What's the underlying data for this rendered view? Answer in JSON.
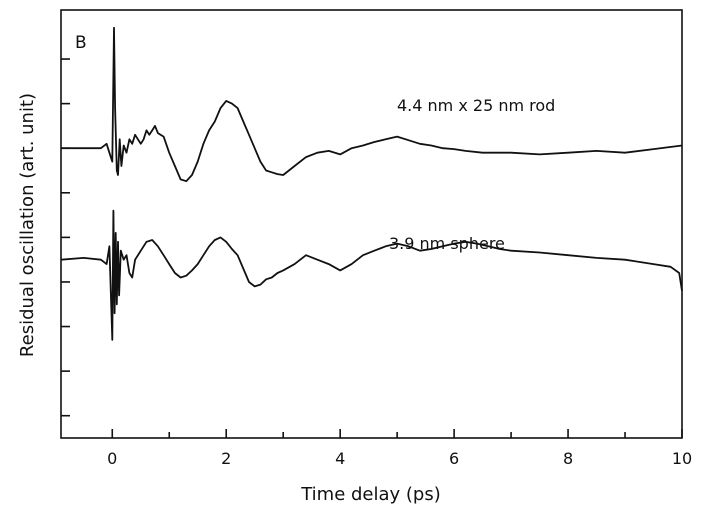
{
  "chart_data": {
    "type": "line",
    "panel_label": "B",
    "xlabel": "Time delay (ps)",
    "ylabel": "Residual oscillation (art. unit)",
    "xlim": [
      -0.9,
      10
    ],
    "x_ticks": [
      0,
      2,
      4,
      6,
      8,
      10
    ],
    "x_minor_ticks": [
      -1,
      1,
      3,
      5,
      7,
      9
    ],
    "ylim": [
      -2.0,
      2.8
    ],
    "y_ticks": [
      -1.75,
      -1.25,
      -0.75,
      -0.25,
      0.25,
      0.75,
      1.25,
      1.75,
      2.25
    ],
    "y_tick_labels_shown": false,
    "grid": false,
    "series": [
      {
        "name": "4.4 nm x  25 nm rod",
        "x": [
          -0.9,
          -0.5,
          -0.2,
          -0.1,
          -0.05,
          0.0,
          0.03,
          0.05,
          0.08,
          0.1,
          0.13,
          0.16,
          0.2,
          0.25,
          0.3,
          0.35,
          0.4,
          0.45,
          0.5,
          0.55,
          0.6,
          0.65,
          0.7,
          0.75,
          0.8,
          0.9,
          1.0,
          1.1,
          1.2,
          1.3,
          1.4,
          1.5,
          1.6,
          1.7,
          1.8,
          1.9,
          2.0,
          2.1,
          2.2,
          2.3,
          2.4,
          2.5,
          2.6,
          2.7,
          2.8,
          2.9,
          3.0,
          3.1,
          3.2,
          3.4,
          3.6,
          3.8,
          4.0,
          4.2,
          4.4,
          4.6,
          4.8,
          5.0,
          5.2,
          5.4,
          5.6,
          5.8,
          6.0,
          6.2,
          6.5,
          7.0,
          7.5,
          8.0,
          8.5,
          9.0,
          9.5,
          10.0
        ],
        "values": [
          1.25,
          1.25,
          1.25,
          1.3,
          1.2,
          1.1,
          2.6,
          1.7,
          1.0,
          0.95,
          1.35,
          1.05,
          1.28,
          1.2,
          1.35,
          1.3,
          1.4,
          1.35,
          1.3,
          1.35,
          1.45,
          1.4,
          1.45,
          1.5,
          1.42,
          1.38,
          1.2,
          1.05,
          0.9,
          0.88,
          0.95,
          1.1,
          1.3,
          1.45,
          1.55,
          1.7,
          1.78,
          1.75,
          1.7,
          1.55,
          1.4,
          1.25,
          1.1,
          1.0,
          0.98,
          0.96,
          0.95,
          1.0,
          1.05,
          1.15,
          1.2,
          1.22,
          1.18,
          1.25,
          1.28,
          1.32,
          1.35,
          1.38,
          1.34,
          1.3,
          1.28,
          1.25,
          1.24,
          1.22,
          1.2,
          1.2,
          1.18,
          1.2,
          1.22,
          1.2,
          1.24,
          1.28
        ]
      },
      {
        "name": "3.9 nm sphere",
        "x": [
          -0.9,
          -0.5,
          -0.2,
          -0.1,
          -0.05,
          0.0,
          0.02,
          0.04,
          0.06,
          0.08,
          0.1,
          0.12,
          0.15,
          0.2,
          0.25,
          0.3,
          0.35,
          0.4,
          0.5,
          0.6,
          0.7,
          0.8,
          0.9,
          1.0,
          1.1,
          1.2,
          1.3,
          1.4,
          1.5,
          1.6,
          1.7,
          1.8,
          1.9,
          2.0,
          2.1,
          2.2,
          2.3,
          2.4,
          2.5,
          2.6,
          2.7,
          2.8,
          2.9,
          3.0,
          3.2,
          3.4,
          3.6,
          3.8,
          4.0,
          4.2,
          4.4,
          4.6,
          4.8,
          5.0,
          5.2,
          5.4,
          5.6,
          5.8,
          6.0,
          6.2,
          6.4,
          6.6,
          6.8,
          7.0,
          7.5,
          8.0,
          8.5,
          9.0,
          9.5,
          9.8,
          9.95,
          10.0
        ],
        "values": [
          0.0,
          0.02,
          0.0,
          -0.05,
          0.15,
          -0.9,
          0.55,
          -0.6,
          0.3,
          -0.5,
          0.2,
          -0.4,
          0.1,
          0.0,
          0.05,
          -0.15,
          -0.2,
          0.0,
          0.1,
          0.2,
          0.22,
          0.15,
          0.05,
          -0.05,
          -0.15,
          -0.2,
          -0.18,
          -0.12,
          -0.05,
          0.05,
          0.15,
          0.22,
          0.25,
          0.2,
          0.12,
          0.05,
          -0.1,
          -0.25,
          -0.3,
          -0.28,
          -0.22,
          -0.2,
          -0.15,
          -0.12,
          -0.05,
          0.05,
          0.0,
          -0.05,
          -0.12,
          -0.05,
          0.05,
          0.1,
          0.15,
          0.18,
          0.15,
          0.1,
          0.12,
          0.15,
          0.18,
          0.2,
          0.18,
          0.15,
          0.12,
          0.1,
          0.08,
          0.05,
          0.02,
          0.0,
          -0.05,
          -0.08,
          -0.15,
          -0.35
        ]
      }
    ]
  }
}
